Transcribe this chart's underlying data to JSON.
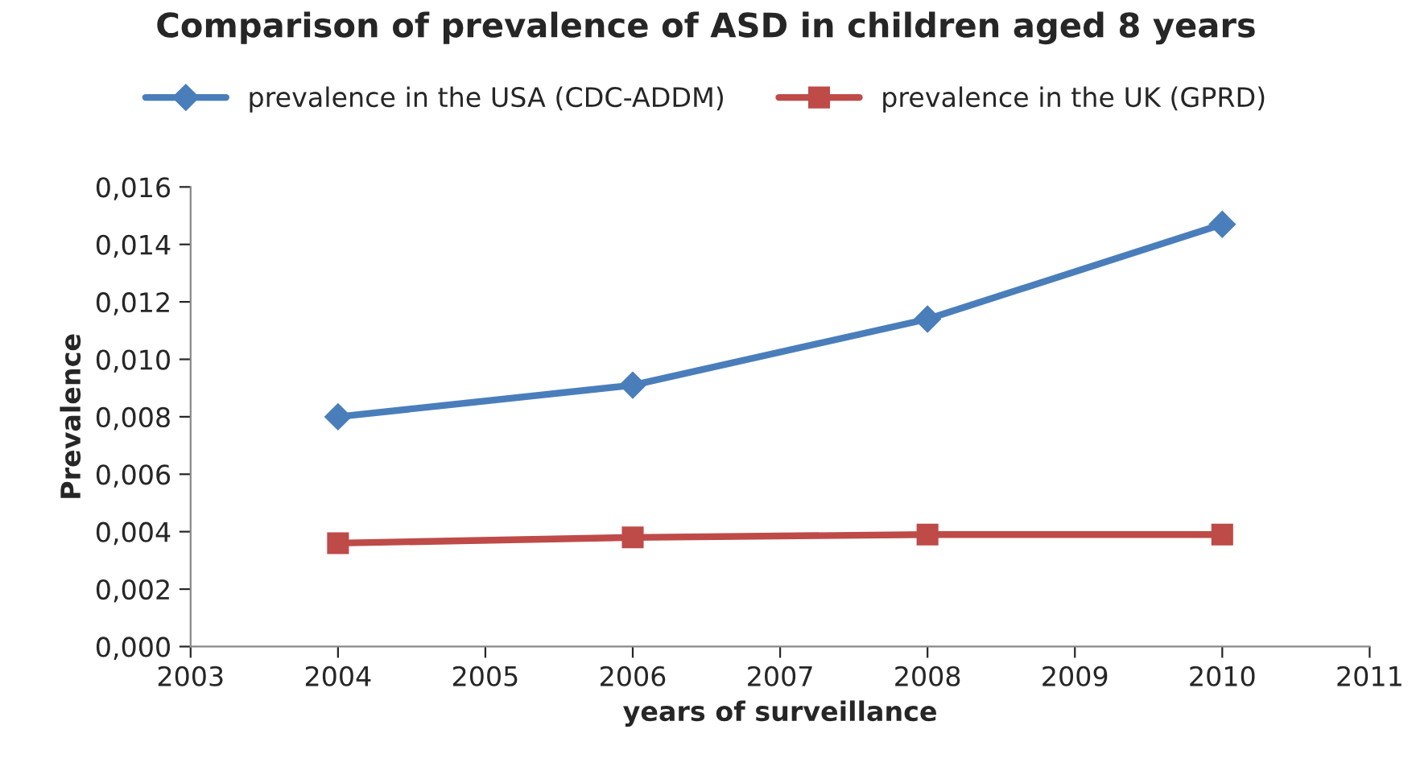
{
  "chart_data": {
    "type": "line",
    "title": "Comparison of prevalence of ASD in children aged 8 years",
    "xlabel": "years of surveillance",
    "ylabel": "Prevalence",
    "x": [
      2004,
      2006,
      2008,
      2010
    ],
    "series": [
      {
        "name": "prevalence in the USA (CDC-ADDM)",
        "color": "#4a7ebb",
        "marker": "diamond",
        "values": [
          0.008,
          0.0091,
          0.0114,
          0.0147
        ]
      },
      {
        "name": "prevalence in the UK (GPRD)",
        "color": "#be4b48",
        "marker": "square",
        "values": [
          0.0036,
          0.0038,
          0.0039,
          0.0039
        ]
      }
    ],
    "xlim": [
      2003,
      2011
    ],
    "xticks": [
      2003,
      2004,
      2005,
      2006,
      2007,
      2008,
      2009,
      2010,
      2011
    ],
    "ylim": [
      0,
      0.016
    ],
    "yticks": [
      {
        "value": 0,
        "label": "0,000"
      },
      {
        "value": 0.002,
        "label": "0,002"
      },
      {
        "value": 0.004,
        "label": "0,004"
      },
      {
        "value": 0.006,
        "label": "0,006"
      },
      {
        "value": 0.008,
        "label": "0,008"
      },
      {
        "value": 0.01,
        "label": "0,010"
      },
      {
        "value": 0.012,
        "label": "0,012"
      },
      {
        "value": 0.014,
        "label": "0,014"
      },
      {
        "value": 0.016,
        "label": "0,016"
      }
    ],
    "grid": false,
    "legend": "top",
    "line_style": "solid"
  }
}
